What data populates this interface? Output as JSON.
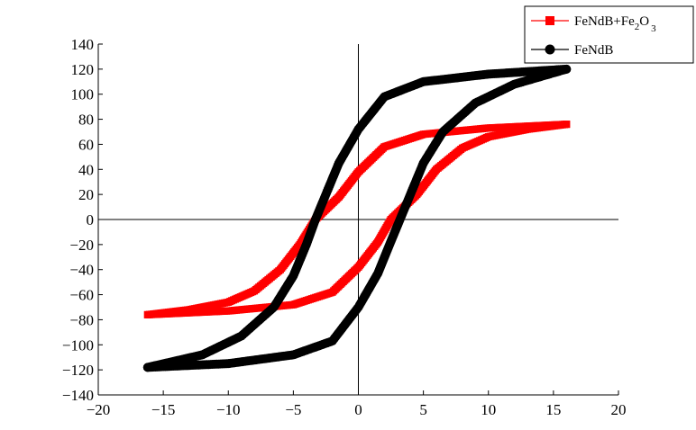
{
  "chart_data": {
    "type": "line",
    "title": "",
    "xlabel": "",
    "ylabel": "",
    "xlim": [
      -20,
      20
    ],
    "ylim": [
      -140,
      140
    ],
    "x_ticks": [
      -20,
      -15,
      -10,
      -5,
      0,
      5,
      10,
      15,
      20
    ],
    "y_ticks": [
      -140,
      -120,
      -100,
      -80,
      -60,
      -40,
      -20,
      0,
      20,
      40,
      60,
      80,
      100,
      120,
      140
    ],
    "x_tick_labels": [
      "−20",
      "−15",
      "−10",
      "−5",
      "0",
      "5",
      "10",
      "15",
      "20"
    ],
    "y_tick_labels": [
      "−140",
      "−120",
      "−100",
      "−80",
      "−60",
      "−40",
      "−20",
      "0",
      "20",
      "40",
      "60",
      "80",
      "100",
      "120",
      "140"
    ],
    "grid": false,
    "zero_lines": true,
    "legend_position": "top-right",
    "series": [
      {
        "name": "FeNdB+Fe2O3",
        "legend_label_main": "FeNdB+Fe",
        "legend_label_sub1": "2",
        "legend_label_mid": "O",
        "legend_label_sub2": "3",
        "color": "#ff0000",
        "marker": "square",
        "descending_branch": [
          [
            16,
            76
          ],
          [
            10,
            73
          ],
          [
            5,
            68
          ],
          [
            2,
            58
          ],
          [
            0,
            38
          ],
          [
            -1.5,
            18
          ],
          [
            -3.3,
            0
          ],
          [
            -4.5,
            -20
          ],
          [
            -6,
            -40
          ],
          [
            -8,
            -57
          ],
          [
            -10,
            -66
          ],
          [
            -13,
            -72
          ],
          [
            -16.2,
            -76
          ]
        ],
        "ascending_branch": [
          [
            -16.2,
            -76
          ],
          [
            -10,
            -73
          ],
          [
            -5,
            -68
          ],
          [
            -2,
            -58
          ],
          [
            0,
            -38
          ],
          [
            1.5,
            -18
          ],
          [
            2.5,
            0
          ],
          [
            4.5,
            20
          ],
          [
            6,
            40
          ],
          [
            8,
            57
          ],
          [
            10,
            66
          ],
          [
            13,
            72
          ],
          [
            16,
            76
          ]
        ]
      },
      {
        "name": "FeNdB",
        "legend_label_main": "FeNdB",
        "color": "#000000",
        "marker": "circle",
        "descending_branch": [
          [
            16,
            120
          ],
          [
            10,
            116
          ],
          [
            5,
            110
          ],
          [
            2,
            98
          ],
          [
            0,
            72
          ],
          [
            -1.5,
            45
          ],
          [
            -2.5,
            20
          ],
          [
            -3.3,
            0
          ],
          [
            -4,
            -20
          ],
          [
            -5,
            -45
          ],
          [
            -6.5,
            -70
          ],
          [
            -9,
            -93
          ],
          [
            -12,
            -108
          ],
          [
            -16.2,
            -118
          ]
        ],
        "ascending_branch": [
          [
            -16.2,
            -118
          ],
          [
            -10,
            -115
          ],
          [
            -5,
            -108
          ],
          [
            -2,
            -97
          ],
          [
            0,
            -70
          ],
          [
            1.5,
            -43
          ],
          [
            2.4,
            -20
          ],
          [
            3.2,
            0
          ],
          [
            4,
            20
          ],
          [
            5,
            45
          ],
          [
            6.5,
            70
          ],
          [
            9,
            93
          ],
          [
            12,
            108
          ],
          [
            16,
            120
          ]
        ]
      }
    ]
  }
}
